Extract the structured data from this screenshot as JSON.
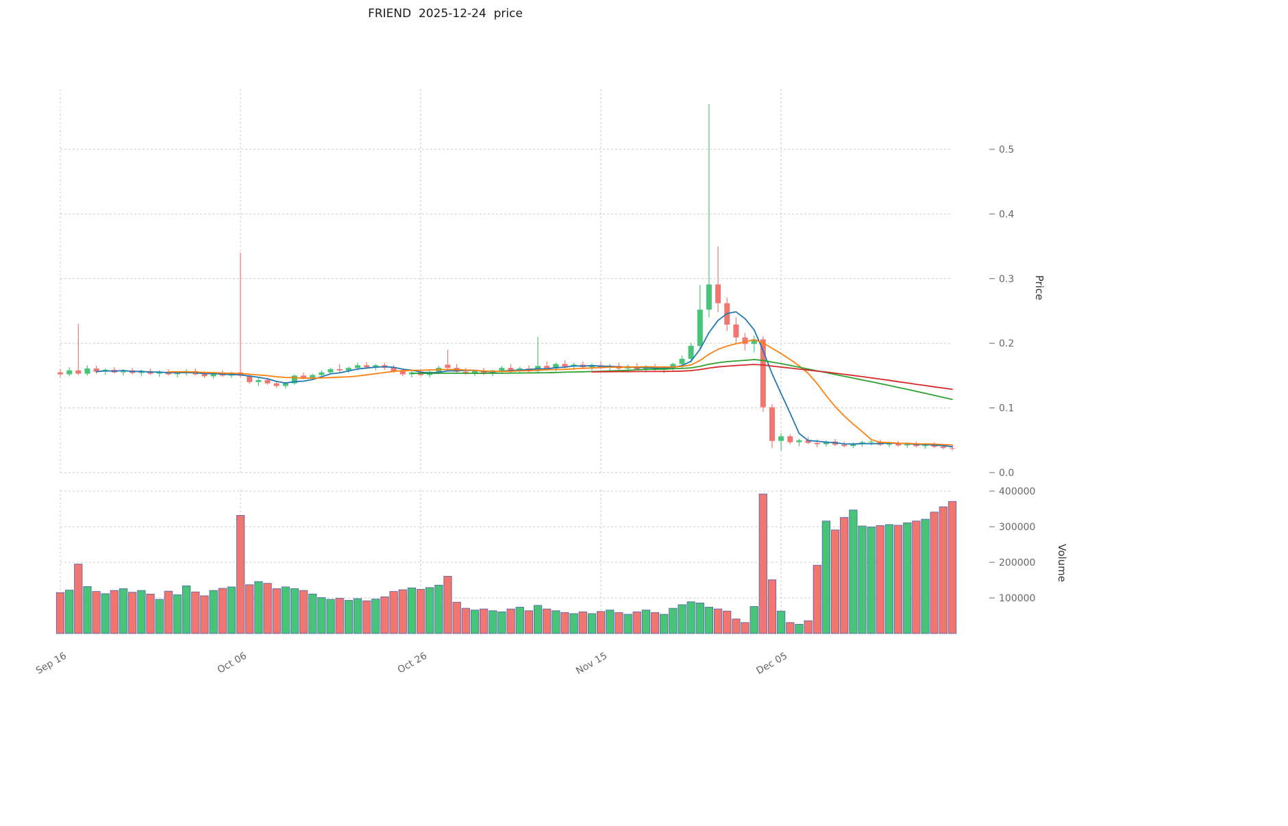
{
  "chart_data": {
    "type": "candlestick",
    "title": "FRIEND  2025-12-24  price",
    "num_points": 100,
    "x_ticks": [
      {
        "index": 0,
        "label": "Sep 16"
      },
      {
        "index": 20,
        "label": "Oct 06"
      },
      {
        "index": 40,
        "label": "Oct 26"
      },
      {
        "index": 60,
        "label": "Nov 15"
      },
      {
        "index": 80,
        "label": "Dec 05"
      }
    ],
    "price_axis": {
      "label": "Price",
      "ticks": [
        0.0,
        0.1,
        0.2,
        0.3,
        0.4,
        0.5
      ]
    },
    "volume_axis": {
      "label": "Volume",
      "ticks": [
        100000,
        200000,
        300000,
        400000
      ]
    },
    "colors": {
      "up": "#48c479",
      "down": "#f0766f",
      "volume_edge": "#4f5fa8",
      "grid": "#c9c9c9",
      "tick_text": "#666666",
      "ma_colors": [
        "#1f77b4",
        "#ff7f0e",
        "#2ca02c",
        "#d62728"
      ]
    },
    "moving_average_windows": [
      5,
      13,
      40,
      60
    ],
    "ohlc": [
      [
        0.155,
        0.16,
        0.148,
        0.152
      ],
      [
        0.152,
        0.163,
        0.149,
        0.158
      ],
      [
        0.158,
        0.23,
        0.151,
        0.153
      ],
      [
        0.153,
        0.166,
        0.15,
        0.161
      ],
      [
        0.161,
        0.165,
        0.153,
        0.156
      ],
      [
        0.156,
        0.161,
        0.151,
        0.159
      ],
      [
        0.159,
        0.163,
        0.153,
        0.155
      ],
      [
        0.155,
        0.16,
        0.15,
        0.158
      ],
      [
        0.158,
        0.162,
        0.152,
        0.154
      ],
      [
        0.154,
        0.159,
        0.149,
        0.157
      ],
      [
        0.157,
        0.161,
        0.151,
        0.153
      ],
      [
        0.153,
        0.158,
        0.148,
        0.156
      ],
      [
        0.156,
        0.16,
        0.15,
        0.152
      ],
      [
        0.152,
        0.157,
        0.147,
        0.155
      ],
      [
        0.155,
        0.16,
        0.15,
        0.157
      ],
      [
        0.157,
        0.161,
        0.15,
        0.152
      ],
      [
        0.152,
        0.157,
        0.146,
        0.149
      ],
      [
        0.149,
        0.155,
        0.145,
        0.153
      ],
      [
        0.153,
        0.158,
        0.148,
        0.15
      ],
      [
        0.15,
        0.156,
        0.146,
        0.154
      ],
      [
        0.155,
        0.34,
        0.147,
        0.15
      ],
      [
        0.15,
        0.152,
        0.137,
        0.14
      ],
      [
        0.14,
        0.146,
        0.134,
        0.143
      ],
      [
        0.143,
        0.147,
        0.136,
        0.138
      ],
      [
        0.138,
        0.142,
        0.131,
        0.134
      ],
      [
        0.134,
        0.14,
        0.13,
        0.138
      ],
      [
        0.138,
        0.152,
        0.136,
        0.15
      ],
      [
        0.15,
        0.155,
        0.144,
        0.147
      ],
      [
        0.147,
        0.153,
        0.143,
        0.151
      ],
      [
        0.151,
        0.158,
        0.148,
        0.155
      ],
      [
        0.155,
        0.162,
        0.152,
        0.16
      ],
      [
        0.16,
        0.168,
        0.155,
        0.158
      ],
      [
        0.158,
        0.164,
        0.154,
        0.162
      ],
      [
        0.162,
        0.17,
        0.158,
        0.166
      ],
      [
        0.166,
        0.171,
        0.16,
        0.163
      ],
      [
        0.163,
        0.168,
        0.158,
        0.166
      ],
      [
        0.166,
        0.17,
        0.159,
        0.162
      ],
      [
        0.162,
        0.166,
        0.154,
        0.157
      ],
      [
        0.157,
        0.161,
        0.149,
        0.152
      ],
      [
        0.152,
        0.158,
        0.147,
        0.155
      ],
      [
        0.155,
        0.16,
        0.149,
        0.151
      ],
      [
        0.151,
        0.158,
        0.147,
        0.156
      ],
      [
        0.156,
        0.165,
        0.152,
        0.162
      ],
      [
        0.167,
        0.19,
        0.158,
        0.162
      ],
      [
        0.162,
        0.168,
        0.153,
        0.156
      ],
      [
        0.156,
        0.162,
        0.151,
        0.154
      ],
      [
        0.154,
        0.159,
        0.149,
        0.157
      ],
      [
        0.157,
        0.162,
        0.151,
        0.154
      ],
      [
        0.154,
        0.159,
        0.149,
        0.158
      ],
      [
        0.158,
        0.165,
        0.153,
        0.162
      ],
      [
        0.162,
        0.168,
        0.155,
        0.158
      ],
      [
        0.158,
        0.164,
        0.153,
        0.161
      ],
      [
        0.161,
        0.166,
        0.155,
        0.157
      ],
      [
        0.157,
        0.21,
        0.153,
        0.165
      ],
      [
        0.165,
        0.172,
        0.158,
        0.161
      ],
      [
        0.161,
        0.17,
        0.157,
        0.168
      ],
      [
        0.168,
        0.174,
        0.161,
        0.164
      ],
      [
        0.164,
        0.17,
        0.159,
        0.167
      ],
      [
        0.167,
        0.172,
        0.161,
        0.163
      ],
      [
        0.163,
        0.169,
        0.158,
        0.166
      ],
      [
        0.166,
        0.171,
        0.16,
        0.162
      ],
      [
        0.162,
        0.168,
        0.157,
        0.165
      ],
      [
        0.165,
        0.17,
        0.159,
        0.161
      ],
      [
        0.161,
        0.167,
        0.156,
        0.164
      ],
      [
        0.164,
        0.169,
        0.158,
        0.16
      ],
      [
        0.16,
        0.166,
        0.155,
        0.163
      ],
      [
        0.163,
        0.168,
        0.157,
        0.159
      ],
      [
        0.159,
        0.165,
        0.154,
        0.162
      ],
      [
        0.162,
        0.17,
        0.158,
        0.168
      ],
      [
        0.168,
        0.181,
        0.162,
        0.176
      ],
      [
        0.176,
        0.201,
        0.17,
        0.196
      ],
      [
        0.196,
        0.29,
        0.19,
        0.252
      ],
      [
        0.252,
        0.57,
        0.24,
        0.291
      ],
      [
        0.291,
        0.35,
        0.248,
        0.262
      ],
      [
        0.262,
        0.271,
        0.219,
        0.229
      ],
      [
        0.229,
        0.24,
        0.199,
        0.209
      ],
      [
        0.209,
        0.216,
        0.189,
        0.199
      ],
      [
        0.199,
        0.212,
        0.186,
        0.206
      ],
      [
        0.206,
        0.211,
        0.094,
        0.101
      ],
      [
        0.101,
        0.106,
        0.038,
        0.049
      ],
      [
        0.049,
        0.061,
        0.034,
        0.056
      ],
      [
        0.056,
        0.059,
        0.044,
        0.047
      ],
      [
        0.047,
        0.052,
        0.041,
        0.05
      ],
      [
        0.05,
        0.055,
        0.044,
        0.046
      ],
      [
        0.046,
        0.051,
        0.039,
        0.044
      ],
      [
        0.044,
        0.05,
        0.04,
        0.048
      ],
      [
        0.048,
        0.052,
        0.041,
        0.043
      ],
      [
        0.043,
        0.048,
        0.039,
        0.041
      ],
      [
        0.041,
        0.047,
        0.038,
        0.045
      ],
      [
        0.045,
        0.049,
        0.04,
        0.047
      ],
      [
        0.047,
        0.05,
        0.042,
        0.048
      ],
      [
        0.048,
        0.051,
        0.041,
        0.043
      ],
      [
        0.043,
        0.048,
        0.039,
        0.046
      ],
      [
        0.046,
        0.049,
        0.04,
        0.042
      ],
      [
        0.042,
        0.047,
        0.038,
        0.045
      ],
      [
        0.045,
        0.048,
        0.039,
        0.041
      ],
      [
        0.041,
        0.046,
        0.037,
        0.044
      ],
      [
        0.044,
        0.047,
        0.038,
        0.04
      ],
      [
        0.04,
        0.044,
        0.036,
        0.038
      ],
      [
        0.038,
        0.042,
        0.034,
        0.037
      ]
    ],
    "volume": [
      115000,
      122000,
      195000,
      132000,
      118000,
      112000,
      121000,
      126000,
      116000,
      121000,
      111000,
      96000,
      119000,
      109000,
      134000,
      117000,
      106000,
      121000,
      127000,
      131000,
      332000,
      137000,
      146000,
      141000,
      126000,
      131000,
      126000,
      121000,
      111000,
      101000,
      96000,
      99000,
      93000,
      98000,
      92000,
      97000,
      103000,
      118000,
      123000,
      128000,
      124000,
      129000,
      136000,
      161000,
      88000,
      71000,
      66000,
      69000,
      64000,
      61000,
      69000,
      74000,
      64000,
      79000,
      69000,
      64000,
      59000,
      56000,
      61000,
      56000,
      62000,
      66000,
      59000,
      54000,
      61000,
      66000,
      59000,
      54000,
      71000,
      81000,
      89000,
      86000,
      74000,
      69000,
      63000,
      41000,
      31000,
      76000,
      392000,
      151000,
      63000,
      31000,
      26000,
      36000,
      192000,
      316000,
      291000,
      326000,
      347000,
      302000,
      299000,
      303000,
      306000,
      304000,
      311000,
      316000,
      321000,
      341000,
      356000,
      371000
    ]
  }
}
